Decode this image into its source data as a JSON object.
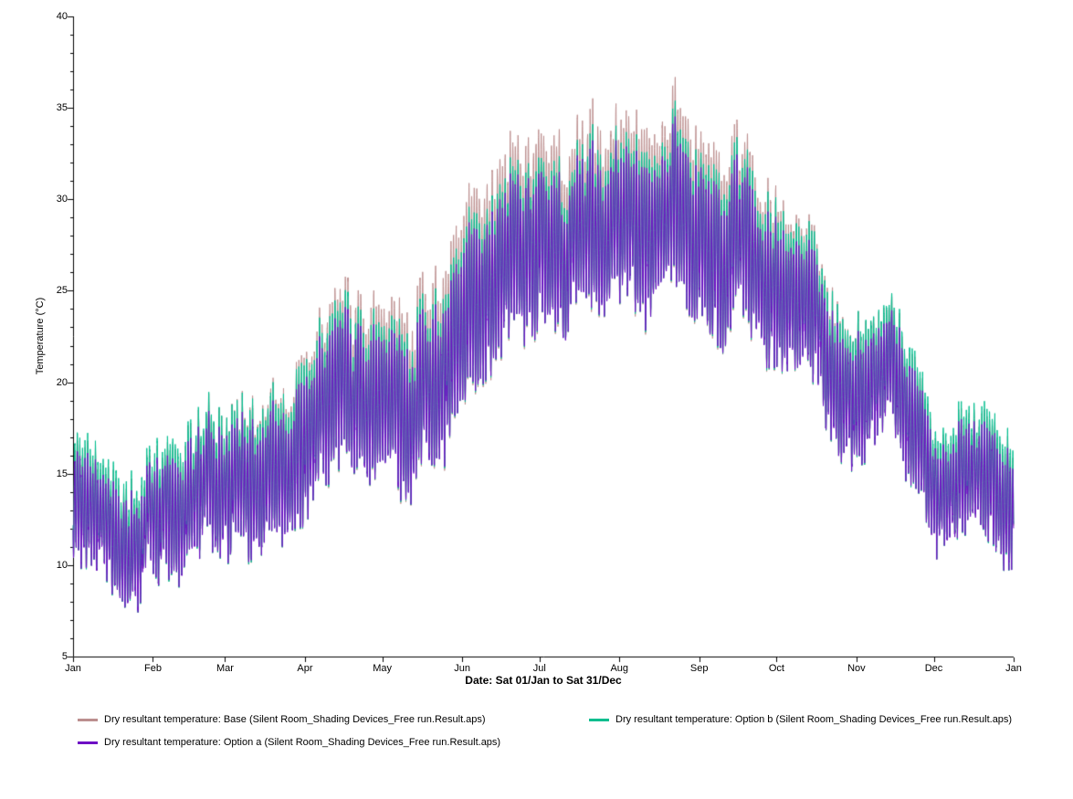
{
  "chart_data": {
    "type": "line",
    "title": "",
    "xlabel": "Date: Sat 01/Jan to Sat 31/Dec",
    "ylabel": "Temperature (°C)",
    "ylim": [
      5,
      40
    ],
    "ytick_major_step": 5,
    "ytick_minor_step": 1,
    "grid": false,
    "legend_position": "bottom",
    "axis_color": "#000000",
    "days_per_year": 365,
    "sample_hours": 1,
    "x_tick_labels": [
      "Jan",
      "Feb",
      "Mar",
      "Apr",
      "May",
      "Jun",
      "Jul",
      "Aug",
      "Sep",
      "Oct",
      "Nov",
      "Dec",
      "Jan"
    ],
    "x_anchor_days": [
      0,
      31,
      59,
      90,
      120,
      151,
      181,
      212,
      243,
      273,
      304,
      334,
      365
    ],
    "series": [
      {
        "name": "Dry resultant temperature: Base (Silent Room_Shading Devices_Free run.Result.aps)",
        "color": "#bc8f8f",
        "monthly_mean": [
          13.3,
          12.6,
          14.5,
          17.2,
          20.4,
          23.0,
          29.6,
          28.5,
          30.0,
          24.8,
          19.0,
          15.3,
          12.8
        ],
        "monthly_amplitude": [
          2.8,
          2.8,
          3.3,
          3.9,
          4.3,
          4.5,
          4.6,
          4.5,
          4.5,
          4.0,
          3.3,
          2.8,
          2.8
        ]
      },
      {
        "name": "Dry resultant temperature: Option b (Silent Room_Shading Devices_Free run.Result.aps)",
        "color": "#00bd8e",
        "monthly_mean": [
          13.5,
          12.8,
          14.5,
          17.0,
          19.9,
          22.4,
          28.9,
          27.9,
          29.4,
          24.5,
          19.0,
          15.5,
          13.0
        ],
        "monthly_amplitude": [
          3.0,
          3.0,
          3.3,
          3.7,
          3.8,
          3.9,
          3.9,
          3.9,
          3.9,
          3.7,
          3.3,
          3.0,
          3.0
        ]
      },
      {
        "name": "Dry resultant temperature: Option a (Silent Room_Shading Devices_Free run.Result.aps)",
        "color": "#6e0fc4",
        "monthly_mean": [
          13.0,
          12.3,
          14.0,
          16.5,
          19.5,
          22.0,
          28.5,
          27.5,
          29.0,
          24.0,
          18.5,
          15.0,
          12.5
        ],
        "monthly_amplitude": [
          2.5,
          2.5,
          2.8,
          3.2,
          3.4,
          3.5,
          3.5,
          3.5,
          3.5,
          3.2,
          2.8,
          2.5,
          2.5
        ]
      }
    ],
    "noise": {
      "seed": 42,
      "daily_walk_persistence": 0.88,
      "daily_walk_step": 2.0,
      "amp_jitter_min": 0.75,
      "amp_jitter_span": 0.5,
      "hf_noise": 0.7
    }
  }
}
